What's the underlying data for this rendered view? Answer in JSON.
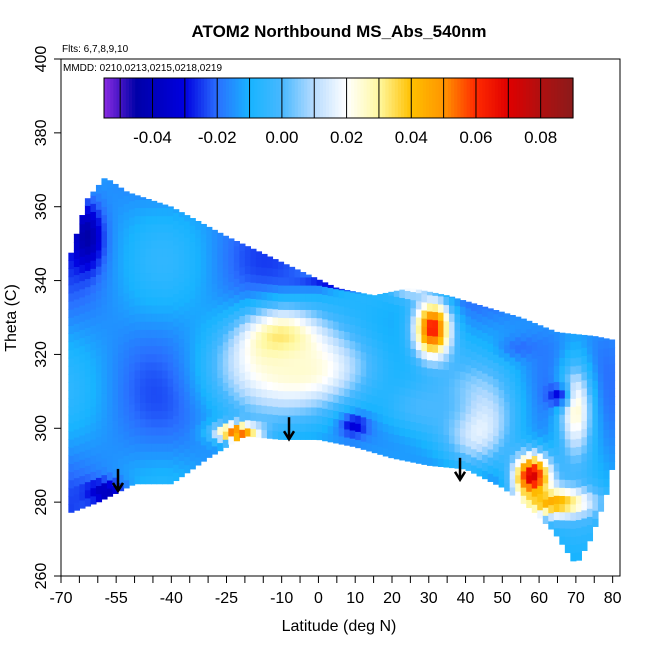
{
  "chart_data": {
    "type": "heatmap",
    "title": "ATOM2 Northbound MS_Abs_540nm",
    "flights_note": "Flts: 6,7,8,9,10",
    "dates_note": "MMDD: 0210,0213,0215,0218,0219",
    "xlabel": "Latitude (deg N)",
    "ylabel": "Theta (C)",
    "xlim": [
      -70,
      82
    ],
    "ylim": [
      260,
      400
    ],
    "x_ticks": [
      -70,
      -55,
      -40,
      -25,
      -10,
      0,
      10,
      20,
      30,
      40,
      50,
      60,
      70,
      80
    ],
    "x_tick_labels": [
      "-70",
      "-55",
      "-40",
      "-25",
      "-10",
      "0",
      "10",
      "20",
      "30",
      "40",
      "50",
      "60",
      "70",
      "80"
    ],
    "x_minor_ticks": [
      -65,
      -60,
      -50,
      -45,
      -35,
      -30,
      -20,
      -15,
      -5,
      5,
      15,
      25,
      35,
      45,
      55,
      65,
      75
    ],
    "y_ticks": [
      260,
      280,
      300,
      320,
      340,
      360,
      380,
      400
    ],
    "y_tick_labels": [
      "260",
      "280",
      "300",
      "320",
      "340",
      "360",
      "380",
      "400"
    ],
    "colorbar": {
      "min": -0.055,
      "max": 0.09,
      "ticks": [
        -0.04,
        -0.02,
        0.0,
        0.02,
        0.04,
        0.06,
        0.08
      ],
      "tick_labels": [
        "-0.04",
        "-0.02",
        "0.00",
        "0.02",
        "0.04",
        "0.06",
        "0.08"
      ],
      "color_stops": [
        {
          "v": -0.055,
          "c": "#8a2be2"
        },
        {
          "v": -0.045,
          "c": "#0000a8"
        },
        {
          "v": -0.03,
          "c": "#0000e0"
        },
        {
          "v": -0.02,
          "c": "#2a6fff"
        },
        {
          "v": -0.01,
          "c": "#18b4ff"
        },
        {
          "v": 0.0,
          "c": "#48b8ff"
        },
        {
          "v": 0.01,
          "c": "#b8dcff"
        },
        {
          "v": 0.02,
          "c": "#ffffff"
        },
        {
          "v": 0.03,
          "c": "#fff8a0"
        },
        {
          "v": 0.04,
          "c": "#ffc000"
        },
        {
          "v": 0.05,
          "c": "#ff9500"
        },
        {
          "v": 0.06,
          "c": "#ff2a00"
        },
        {
          "v": 0.07,
          "c": "#e00000"
        },
        {
          "v": 0.08,
          "c": "#b01010"
        },
        {
          "v": 0.09,
          "c": "#8b1a1a"
        }
      ]
    },
    "data_boundary": {
      "upper": [
        [
          -68,
          345
        ],
        [
          -63,
          362
        ],
        [
          -58,
          368
        ],
        [
          -52,
          364
        ],
        [
          -40,
          360
        ],
        [
          -25,
          352
        ],
        [
          -10,
          345
        ],
        [
          5,
          338
        ],
        [
          15,
          336
        ],
        [
          25,
          338
        ],
        [
          35,
          336
        ],
        [
          45,
          333
        ],
        [
          55,
          330
        ],
        [
          65,
          326
        ],
        [
          75,
          325
        ],
        [
          80,
          324
        ]
      ],
      "lower": [
        [
          -68,
          277
        ],
        [
          -60,
          280
        ],
        [
          -50,
          285
        ],
        [
          -40,
          285
        ],
        [
          -30,
          292
        ],
        [
          -20,
          298
        ],
        [
          -10,
          297
        ],
        [
          0,
          297
        ],
        [
          10,
          295
        ],
        [
          20,
          292
        ],
        [
          30,
          290
        ],
        [
          40,
          289
        ],
        [
          50,
          284
        ],
        [
          58,
          278
        ],
        [
          64,
          272
        ],
        [
          70,
          263
        ],
        [
          74,
          270
        ],
        [
          78,
          281
        ],
        [
          80,
          290
        ]
      ]
    },
    "field_anomalies": [
      {
        "lat": -10,
        "theta": 323,
        "value": 0.045,
        "rx": 11,
        "ry": 9
      },
      {
        "lat": 31,
        "theta": 327,
        "value": 0.065,
        "rx": 5,
        "ry": 8
      },
      {
        "lat": 58,
        "theta": 287,
        "value": 0.075,
        "rx": 5,
        "ry": 6
      },
      {
        "lat": 64,
        "theta": 280,
        "value": 0.045,
        "rx": 10,
        "ry": 4
      },
      {
        "lat": -22,
        "theta": 299,
        "value": 0.06,
        "rx": 6,
        "ry": 2.5
      },
      {
        "lat": -5,
        "theta": 316,
        "value": 0.025,
        "rx": 22,
        "ry": 12
      },
      {
        "lat": 43,
        "theta": 302,
        "value": 0.022,
        "rx": 9,
        "ry": 12
      },
      {
        "lat": 25,
        "theta": 340,
        "value": 0.03,
        "rx": 5,
        "ry": 4
      },
      {
        "lat": 70,
        "theta": 305,
        "value": 0.025,
        "rx": 5,
        "ry": 14
      },
      {
        "lat": -63,
        "theta": 352,
        "value": -0.045,
        "rx": 4,
        "ry": 8
      },
      {
        "lat": 8,
        "theta": 340,
        "value": -0.035,
        "rx": 12,
        "ry": 2
      },
      {
        "lat": 10,
        "theta": 301,
        "value": -0.035,
        "rx": 4,
        "ry": 3
      },
      {
        "lat": -58,
        "theta": 283,
        "value": -0.04,
        "rx": 5,
        "ry": 3
      },
      {
        "lat": 65,
        "theta": 309,
        "value": -0.03,
        "rx": 3,
        "ry": 3
      },
      {
        "lat": 55,
        "theta": 322,
        "value": -0.02,
        "rx": 6,
        "ry": 3
      },
      {
        "lat": 30,
        "theta": 306,
        "value": 0.0,
        "rx": 14,
        "ry": 8
      }
    ],
    "field_background": -0.015,
    "flight_arrows": [
      {
        "lat": -54.5,
        "theta": 289
      },
      {
        "lat": -8,
        "theta": 303
      },
      {
        "lat": 38.5,
        "theta": 292
      }
    ]
  }
}
